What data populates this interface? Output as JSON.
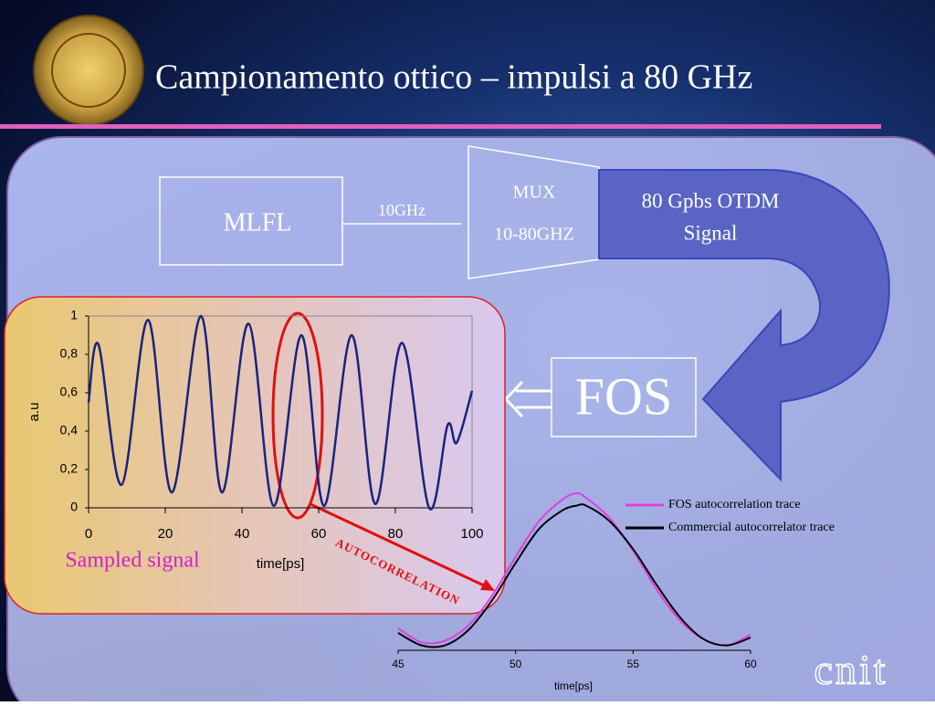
{
  "title": "Campionamento ottico – impulsi a 80 GHz",
  "diagram": {
    "source": "MLFL",
    "link": "10GHz",
    "mux": [
      "MUX",
      "10-80GHZ"
    ],
    "signal": [
      "80 Gpbs OTDM",
      "Signal"
    ],
    "receiver": "FOS"
  },
  "caption": "Sampled signal",
  "annotation": "AUTOCORRELATION",
  "logo_text": "cnit",
  "chart_data": [
    {
      "type": "line",
      "xlabel": "time[ps]",
      "ylabel": "a.u",
      "x": [
        0,
        2.6,
        8.6,
        15.5,
        21.7,
        29.3,
        34.8,
        41.7,
        48.3,
        55.5,
        61.4,
        68.6,
        74.8,
        81.7,
        88.8,
        93.6,
        96,
        100
      ],
      "series": [
        {
          "color": "#1a237e",
          "values": [
            0.55,
            0.85,
            0.12,
            0.98,
            0.08,
            1.0,
            0.08,
            0.96,
            0.01,
            0.9,
            0.01,
            0.9,
            0.02,
            0.86,
            0.0,
            0.43,
            0.34,
            0.61
          ]
        }
      ],
      "xlim": [
        0,
        100
      ],
      "xticks": [
        0,
        20,
        40,
        60,
        80,
        100
      ],
      "ylim": [
        0,
        1
      ],
      "yticks": [
        0,
        {
          "value": 0.2,
          "label": "0,2"
        },
        {
          "value": 0.4,
          "label": "0,4"
        },
        {
          "value": 0.6,
          "label": "0,6"
        },
        {
          "value": 0.8,
          "label": "0,8"
        },
        1
      ]
    },
    {
      "type": "line",
      "xlabel": "time[ps]",
      "legend": "upper right",
      "x": [
        45,
        46,
        47,
        48,
        49,
        50,
        51,
        52,
        52.6,
        53,
        54,
        55,
        56,
        57,
        58,
        59,
        60
      ],
      "series": [
        {
          "name": "FOS autocorrelation trace",
          "color": "#e040e0",
          "values": [
            0.13,
            0.04,
            0.05,
            0.15,
            0.34,
            0.59,
            0.82,
            0.96,
            1.0,
            0.97,
            0.84,
            0.63,
            0.38,
            0.18,
            0.06,
            0.02,
            0.09
          ]
        },
        {
          "name": "Commercial autocorrelator trace",
          "color": "#000000",
          "values": [
            0.1,
            0.02,
            0.02,
            0.12,
            0.31,
            0.55,
            0.77,
            0.89,
            0.92,
            0.92,
            0.82,
            0.64,
            0.41,
            0.2,
            0.06,
            0.02,
            0.07
          ]
        }
      ],
      "xlim": [
        45,
        60
      ],
      "xticks": [
        45,
        50,
        55,
        60
      ],
      "ylim": [
        0,
        1
      ]
    }
  ]
}
